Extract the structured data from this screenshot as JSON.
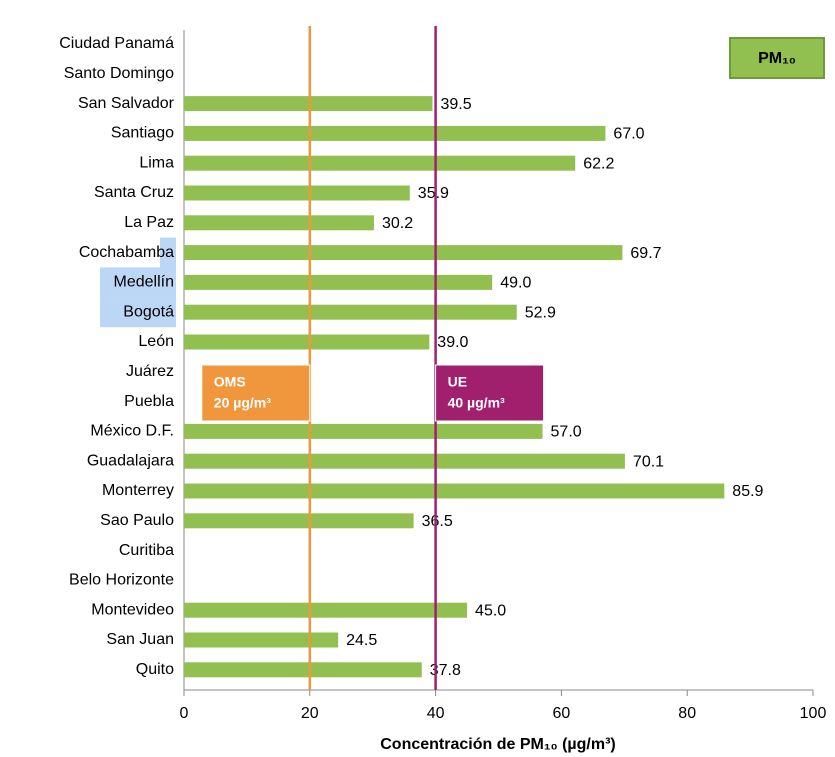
{
  "chart_data": {
    "type": "barh",
    "x_label": "Concentración de PM₁₀ (µg/m³)",
    "legend": "PM₁₀",
    "legend_corner": "top-right",
    "color": "#92c050",
    "categories": [
      "Ciudad Panamá",
      "Santo Domingo",
      "San Salvador",
      "Santiago",
      "Lima",
      "Santa Cruz",
      "La Paz",
      "Cochabamba",
      "Medellín",
      "Bogotá",
      "León",
      "Juárez",
      "Puebla",
      "México D.F.",
      "Guadalajara",
      "Monterrey",
      "Sao Paulo",
      "Curitiba",
      "Belo Horizonte",
      "Montevideo",
      "San Juan",
      "Quito"
    ],
    "values": [
      null,
      null,
      39.5,
      67.0,
      62.2,
      35.9,
      30.2,
      69.7,
      49.0,
      52.9,
      39.0,
      null,
      null,
      57.0,
      70.1,
      85.9,
      36.5,
      null,
      null,
      45.0,
      24.5,
      37.8
    ],
    "value_labels": [
      null,
      null,
      "39.5",
      "67.0",
      "62.2",
      "35.9",
      "30.2",
      "69.7",
      "49.0",
      "52.9",
      "39.0",
      null,
      null,
      "57.0",
      "70.1",
      "85.9",
      "36.5",
      null,
      null,
      "45.0",
      "24.5",
      "37.8"
    ],
    "highlighted": [
      "Cochabamba",
      "Medellín",
      "Bogotá"
    ],
    "highlight_color": "#bcd7f5",
    "xlim": [
      0,
      100
    ],
    "xticks": [
      0,
      20,
      40,
      60,
      80,
      100
    ],
    "reference_lines": [
      {
        "value": 20,
        "label": "OMS",
        "sublabel": "20 µg/m³",
        "color": "#f0963c",
        "label_side": "left"
      },
      {
        "value": 40,
        "label": "UE",
        "sublabel": "40 µg/m³",
        "color": "#a0206e",
        "label_side": "right"
      }
    ]
  }
}
